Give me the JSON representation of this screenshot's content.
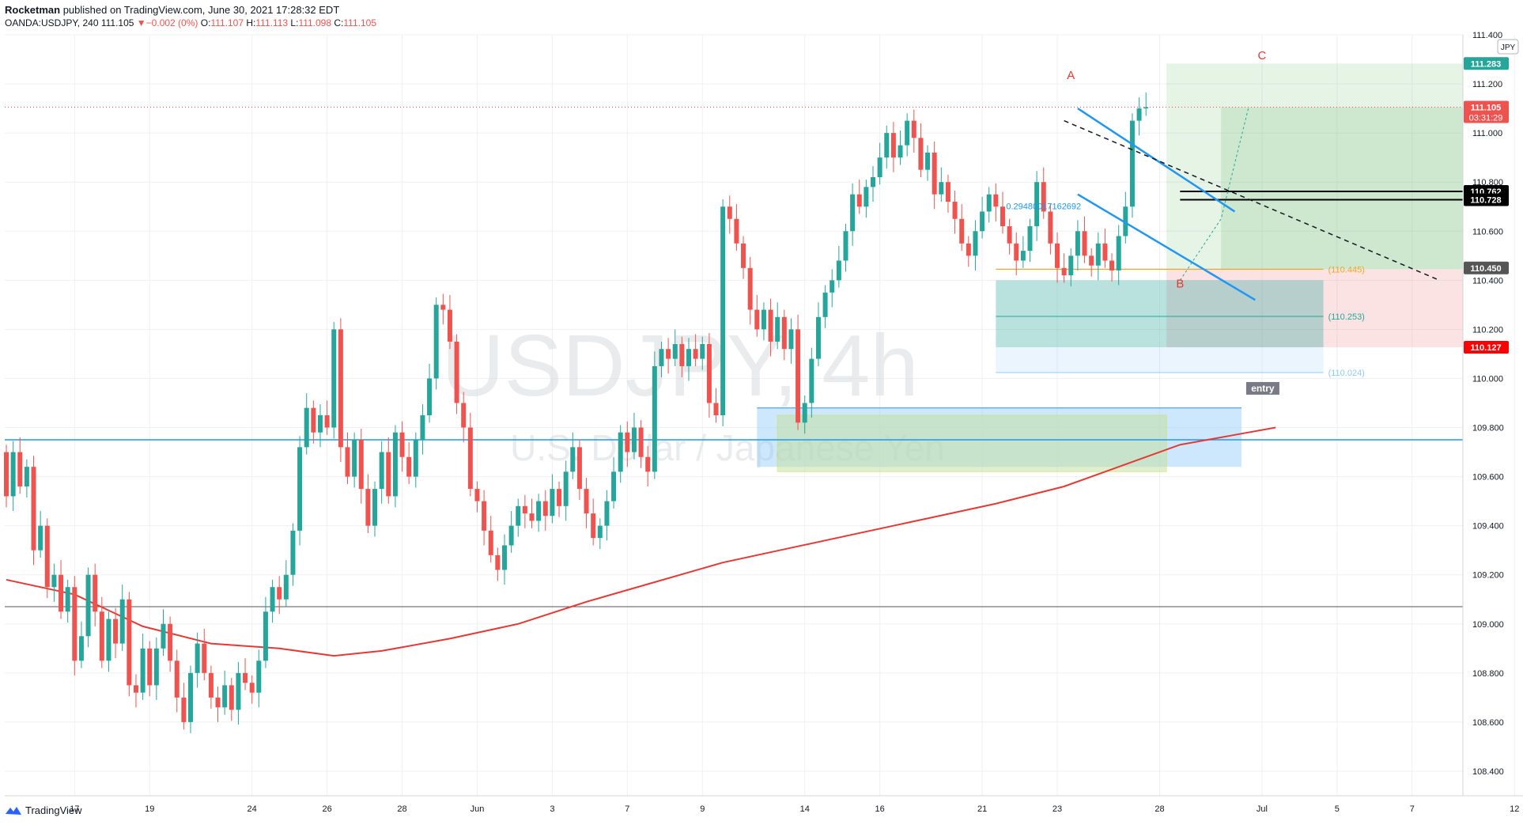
{
  "header": {
    "author": "Rocketman",
    "published": "published on TradingView.com, June 30, 2021 17:28:32 EDT",
    "symbol": "OANDA:USDJPY, 240",
    "last": "111.105",
    "change": "▼−0.002 (0%)",
    "o_label": "O:",
    "o_value": "111.107",
    "h_label": "H:",
    "h_value": "111.113",
    "l_label": "L:",
    "l_value": "111.098",
    "c_label": "C:",
    "c_value": "111.105"
  },
  "footer": {
    "brand": "TradingView"
  },
  "watermark": {
    "symbol": "USDJPY, 4h",
    "name": "U.S. Dollar / Japanese Yen"
  },
  "currency_badge": "JPY",
  "colors": {
    "up": "#26a69a",
    "down": "#ef5350",
    "ma": "#e53935",
    "channel": "#2196f3",
    "bg": "#ffffff",
    "grid": "#eef0f4"
  },
  "chart_data": {
    "type": "candlestick",
    "ylim": [
      108.3,
      111.4
    ],
    "y_ticks": [
      "108.400",
      "108.600",
      "108.800",
      "109.000",
      "109.200",
      "109.400",
      "109.600",
      "109.800",
      "110.000",
      "110.200",
      "110.400",
      "110.600",
      "110.800",
      "111.000",
      "111.200",
      "111.400"
    ],
    "x_ticks": [
      "17",
      "19",
      "24",
      "26",
      "28",
      "Jun",
      "3",
      "7",
      "9",
      "14",
      "16",
      "21",
      "23",
      "28",
      "Jul",
      "5",
      "7",
      "12"
    ],
    "x_tick_bars": [
      10,
      21,
      36,
      47,
      58,
      69,
      80,
      91,
      102,
      117,
      128,
      143,
      154,
      169,
      184,
      195,
      206,
      221
    ],
    "price_labels": [
      {
        "value": "111.283",
        "color": "#26a69a",
        "price": 111.283
      },
      {
        "value": "111.105",
        "time": "03:31:29",
        "color": "#ef5350",
        "price": 111.105
      },
      {
        "value": "110.762",
        "color": "#000000",
        "price": 110.762
      },
      {
        "value": "110.728",
        "color": "#000000",
        "price": 110.728
      },
      {
        "value": "110.450",
        "color": "#555555",
        "price": 110.45
      },
      {
        "value": "110.127",
        "color": "#ff0000",
        "price": 110.127
      }
    ],
    "level_labels": [
      {
        "text": "(110.445)",
        "color": "#f5a623",
        "price": 110.445
      },
      {
        "text": "(110.253)",
        "color": "#26a69a",
        "price": 110.253
      },
      {
        "text": "(110.024)",
        "color": "#90caf9",
        "price": 110.024
      }
    ],
    "wave_labels": [
      {
        "text": "A",
        "bar": 156,
        "price": 111.22
      },
      {
        "text": "B",
        "bar": 172,
        "price": 110.37
      },
      {
        "text": "C",
        "bar": 184,
        "price": 111.3
      }
    ],
    "text_annotations": [
      {
        "text": "entry",
        "bar": 184,
        "price": 109.95
      },
      {
        "text": "0.29480017162692",
        "bar": 152,
        "price": 110.69
      }
    ],
    "ma_points": [
      [
        0,
        109.18
      ],
      [
        10,
        109.12
      ],
      [
        20,
        108.99
      ],
      [
        30,
        108.92
      ],
      [
        40,
        108.9
      ],
      [
        48,
        108.87
      ],
      [
        55,
        108.89
      ],
      [
        65,
        108.94
      ],
      [
        75,
        109.0
      ],
      [
        85,
        109.09
      ],
      [
        95,
        109.17
      ],
      [
        105,
        109.25
      ],
      [
        115,
        109.31
      ],
      [
        125,
        109.37
      ],
      [
        135,
        109.43
      ],
      [
        145,
        109.49
      ],
      [
        155,
        109.56
      ],
      [
        165,
        109.66
      ],
      [
        172,
        109.73
      ],
      [
        180,
        109.77
      ],
      [
        186,
        109.8
      ]
    ],
    "candles": [
      [
        109.7,
        109.52
      ],
      [
        109.52,
        109.7
      ],
      [
        109.7,
        109.56
      ],
      [
        109.56,
        109.64
      ],
      [
        109.64,
        109.3
      ],
      [
        109.3,
        109.4
      ],
      [
        109.4,
        109.15
      ],
      [
        109.15,
        109.2
      ],
      [
        109.2,
        109.05
      ],
      [
        109.05,
        109.15
      ],
      [
        109.15,
        108.85
      ],
      [
        108.85,
        108.95
      ],
      [
        108.95,
        109.2
      ],
      [
        109.2,
        109.05
      ],
      [
        109.05,
        108.85
      ],
      [
        108.85,
        109.02
      ],
      [
        109.02,
        108.92
      ],
      [
        108.92,
        109.1
      ],
      [
        109.1,
        108.75
      ],
      [
        108.75,
        108.72
      ],
      [
        108.72,
        108.9
      ],
      [
        108.9,
        108.75
      ],
      [
        108.75,
        108.9
      ],
      [
        108.9,
        109.0
      ],
      [
        109.0,
        108.85
      ],
      [
        108.85,
        108.7
      ],
      [
        108.7,
        108.6
      ],
      [
        108.6,
        108.8
      ],
      [
        108.8,
        108.92
      ],
      [
        108.92,
        108.8
      ],
      [
        108.8,
        108.7
      ],
      [
        108.7,
        108.66
      ],
      [
        108.66,
        108.75
      ],
      [
        108.75,
        108.65
      ],
      [
        108.65,
        108.8
      ],
      [
        108.8,
        108.76
      ],
      [
        108.76,
        108.72
      ],
      [
        108.72,
        108.85
      ],
      [
        108.85,
        109.05
      ],
      [
        109.05,
        109.15
      ],
      [
        109.15,
        109.1
      ],
      [
        109.1,
        109.2
      ],
      [
        109.2,
        109.38
      ],
      [
        109.38,
        109.72
      ],
      [
        109.72,
        109.88
      ],
      [
        109.88,
        109.78
      ],
      [
        109.78,
        109.85
      ],
      [
        109.85,
        109.8
      ],
      [
        109.8,
        110.2
      ],
      [
        110.2,
        109.72
      ],
      [
        109.72,
        109.6
      ],
      [
        109.6,
        109.75
      ],
      [
        109.75,
        109.55
      ],
      [
        109.55,
        109.4
      ],
      [
        109.4,
        109.55
      ],
      [
        109.55,
        109.7
      ],
      [
        109.7,
        109.52
      ],
      [
        109.52,
        109.78
      ],
      [
        109.78,
        109.68
      ],
      [
        109.68,
        109.6
      ],
      [
        109.6,
        109.75
      ],
      [
        109.75,
        109.85
      ],
      [
        109.85,
        110.0
      ],
      [
        110.0,
        110.3
      ],
      [
        110.3,
        110.28
      ],
      [
        110.28,
        110.15
      ],
      [
        110.15,
        109.9
      ],
      [
        109.9,
        109.8
      ],
      [
        109.8,
        109.55
      ],
      [
        109.55,
        109.5
      ],
      [
        109.5,
        109.38
      ],
      [
        109.38,
        109.28
      ],
      [
        109.28,
        109.22
      ],
      [
        109.22,
        109.32
      ],
      [
        109.32,
        109.4
      ],
      [
        109.4,
        109.48
      ],
      [
        109.48,
        109.45
      ],
      [
        109.45,
        109.42
      ],
      [
        109.42,
        109.5
      ],
      [
        109.5,
        109.44
      ],
      [
        109.44,
        109.55
      ],
      [
        109.55,
        109.48
      ],
      [
        109.48,
        109.62
      ],
      [
        109.62,
        109.72
      ],
      [
        109.72,
        109.55
      ],
      [
        109.55,
        109.45
      ],
      [
        109.45,
        109.35
      ],
      [
        109.35,
        109.4
      ],
      [
        109.4,
        109.5
      ],
      [
        109.5,
        109.62
      ],
      [
        109.62,
        109.78
      ],
      [
        109.78,
        109.7
      ],
      [
        109.7,
        109.8
      ],
      [
        109.8,
        109.68
      ],
      [
        109.68,
        109.62
      ],
      [
        109.62,
        110.05
      ],
      [
        110.05,
        110.12
      ],
      [
        110.12,
        110.08
      ],
      [
        110.08,
        110.14
      ],
      [
        110.14,
        110.05
      ],
      [
        110.05,
        110.12
      ],
      [
        110.12,
        110.08
      ],
      [
        110.08,
        110.14
      ],
      [
        110.14,
        109.9
      ],
      [
        109.9,
        109.85
      ],
      [
        109.85,
        110.7
      ],
      [
        110.7,
        110.65
      ],
      [
        110.65,
        110.55
      ],
      [
        110.55,
        110.45
      ],
      [
        110.45,
        110.28
      ],
      [
        110.28,
        110.2
      ],
      [
        110.2,
        110.28
      ],
      [
        110.28,
        110.15
      ],
      [
        110.15,
        110.25
      ],
      [
        110.25,
        110.12
      ],
      [
        110.12,
        110.2
      ],
      [
        110.2,
        109.82
      ],
      [
        109.82,
        109.9
      ],
      [
        109.9,
        110.08
      ],
      [
        110.08,
        110.25
      ],
      [
        110.25,
        110.35
      ],
      [
        110.35,
        110.4
      ],
      [
        110.4,
        110.48
      ],
      [
        110.48,
        110.6
      ],
      [
        110.6,
        110.75
      ],
      [
        110.75,
        110.7
      ],
      [
        110.7,
        110.78
      ],
      [
        110.78,
        110.82
      ],
      [
        110.82,
        110.9
      ],
      [
        110.9,
        111.0
      ],
      [
        111.0,
        110.9
      ],
      [
        110.9,
        110.95
      ],
      [
        110.95,
        111.05
      ],
      [
        111.05,
        110.98
      ],
      [
        110.98,
        110.85
      ],
      [
        110.85,
        110.92
      ],
      [
        110.92,
        110.75
      ],
      [
        110.75,
        110.8
      ],
      [
        110.8,
        110.72
      ],
      [
        110.72,
        110.65
      ],
      [
        110.65,
        110.55
      ],
      [
        110.55,
        110.5
      ],
      [
        110.5,
        110.6
      ],
      [
        110.6,
        110.68
      ],
      [
        110.68,
        110.75
      ],
      [
        110.75,
        110.7
      ],
      [
        110.7,
        110.62
      ],
      [
        110.62,
        110.55
      ],
      [
        110.55,
        110.48
      ],
      [
        110.48,
        110.52
      ],
      [
        110.52,
        110.62
      ],
      [
        110.62,
        110.8
      ],
      [
        110.8,
        110.68
      ],
      [
        110.68,
        110.55
      ],
      [
        110.55,
        110.45
      ],
      [
        110.45,
        110.42
      ],
      [
        110.42,
        110.5
      ],
      [
        110.5,
        110.6
      ],
      [
        110.6,
        110.5
      ],
      [
        110.5,
        110.46
      ],
      [
        110.46,
        110.55
      ],
      [
        110.55,
        110.48
      ],
      [
        110.48,
        110.44
      ],
      [
        110.44,
        110.58
      ],
      [
        110.58,
        110.7
      ],
      [
        110.7,
        111.05
      ],
      [
        111.05,
        111.1
      ],
      [
        111.1,
        111.105
      ]
    ]
  }
}
